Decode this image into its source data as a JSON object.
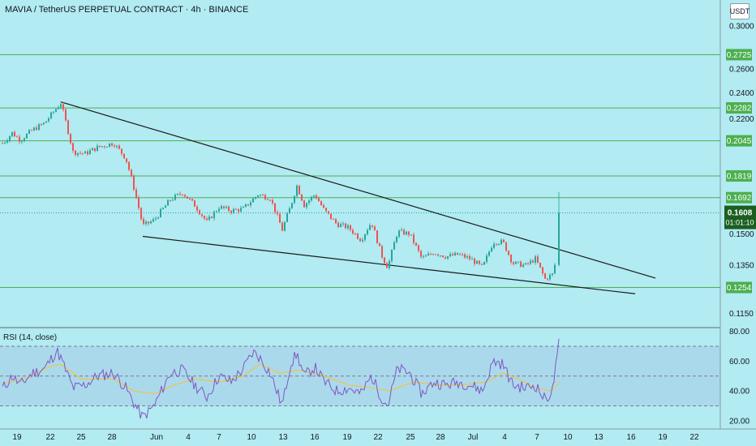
{
  "header": {
    "title": "MAVIA / TetherUS PERPETUAL CONTRACT · 4h · BINANCE",
    "currency": "USDT"
  },
  "rsi": {
    "title": "RSI (14, close)",
    "axis_ticks": [
      "80.00",
      "60.00",
      "40.00",
      "20.00"
    ]
  },
  "colors": {
    "background": "#b2ebf2",
    "bull": "#26a69a",
    "bear": "#ef5350",
    "level_line": "#4caf50",
    "level_label_bg": "#4caf50",
    "price_label_bg": "#1b5e20",
    "rsi_line": "#7e57c2",
    "rsi_ma": "#fbc02d"
  },
  "chart_data": [
    {
      "type": "candlestick",
      "title": "MAVIA / TetherUS PERPETUAL CONTRACT · 4h · BINANCE",
      "x_tick_labels": [
        "19",
        "22",
        "25",
        "28",
        "Jun",
        "4",
        "7",
        "10",
        "13",
        "16",
        "19",
        "22",
        "25",
        "28",
        "Jul",
        "4",
        "7",
        "10",
        "13",
        "16",
        "19",
        "22"
      ],
      "y_tick_labels": [
        "0.3000",
        "0.2600",
        "0.2400",
        "0.2200",
        "0.1500",
        "0.1350",
        "0.1150"
      ],
      "ylim": [
        0.11,
        0.32
      ],
      "horizontal_levels": [
        0.2725,
        0.2282,
        0.2045,
        0.1819,
        0.1692
      ],
      "support_level": 0.1254,
      "last_price": 0.1608,
      "countdown": "01:01:10",
      "trendlines": [
        {
          "name": "upper",
          "from": [
            75,
            0.2328
          ],
          "to": [
            808,
            0.1294
          ]
        },
        {
          "name": "lower",
          "from": [
            176,
            0.1487
          ],
          "to": [
            783,
            0.1228
          ]
        }
      ],
      "anchors": [
        [
          4,
          0.203
        ],
        [
          15,
          0.21
        ],
        [
          25,
          0.205
        ],
        [
          40,
          0.212
        ],
        [
          55,
          0.217
        ],
        [
          75,
          0.232
        ],
        [
          90,
          0.197
        ],
        [
          105,
          0.196
        ],
        [
          120,
          0.2
        ],
        [
          140,
          0.203
        ],
        [
          155,
          0.193
        ],
        [
          165,
          0.175
        ],
        [
          176,
          0.154
        ],
        [
          190,
          0.157
        ],
        [
          210,
          0.168
        ],
        [
          225,
          0.172
        ],
        [
          240,
          0.165
        ],
        [
          255,
          0.156
        ],
        [
          270,
          0.164
        ],
        [
          285,
          0.162
        ],
        [
          300,
          0.163
        ],
        [
          318,
          0.171
        ],
        [
          333,
          0.169
        ],
        [
          348,
          0.152
        ],
        [
          358,
          0.164
        ],
        [
          366,
          0.176
        ],
        [
          375,
          0.165
        ],
        [
          388,
          0.171
        ],
        [
          400,
          0.162
        ],
        [
          415,
          0.155
        ],
        [
          430,
          0.153
        ],
        [
          445,
          0.147
        ],
        [
          458,
          0.156
        ],
        [
          470,
          0.14
        ],
        [
          478,
          0.134
        ],
        [
          490,
          0.151
        ],
        [
          505,
          0.15
        ],
        [
          520,
          0.138
        ],
        [
          535,
          0.141
        ],
        [
          550,
          0.139
        ],
        [
          565,
          0.14
        ],
        [
          580,
          0.138
        ],
        [
          595,
          0.134
        ],
        [
          608,
          0.146
        ],
        [
          620,
          0.146
        ],
        [
          632,
          0.136
        ],
        [
          648,
          0.135
        ],
        [
          660,
          0.138
        ],
        [
          672,
          0.129
        ],
        [
          681,
          0.131
        ],
        [
          686,
          0.138
        ],
        [
          690,
          0.1608
        ]
      ]
    },
    {
      "type": "line",
      "title": "RSI (14, close)",
      "ylim": [
        15,
        82
      ],
      "y_tick_labels": [
        "80.00",
        "60.00",
        "40.00",
        "20.00"
      ],
      "levels": [
        70,
        50,
        30
      ],
      "series": [
        {
          "values": [
            [
              4,
              42
            ],
            [
              15,
              50
            ],
            [
              25,
              44
            ],
            [
              40,
              52
            ],
            [
              55,
              55
            ],
            [
              70,
              67
            ],
            [
              75,
              62
            ],
            [
              90,
              42
            ],
            [
              105,
              44
            ],
            [
              120,
              50
            ],
            [
              140,
              52
            ],
            [
              155,
              42
            ],
            [
              165,
              32
            ],
            [
              176,
              22
            ],
            [
              190,
              30
            ],
            [
              210,
              52
            ],
            [
              225,
              54
            ],
            [
              240,
              44
            ],
            [
              255,
              36
            ],
            [
              270,
              50
            ],
            [
              285,
              46
            ],
            [
              300,
              55
            ],
            [
              312,
              66
            ],
            [
              318,
              64
            ],
            [
              333,
              52
            ],
            [
              348,
              30
            ],
            [
              358,
              58
            ],
            [
              366,
              65
            ],
            [
              375,
              50
            ],
            [
              388,
              56
            ],
            [
              400,
              46
            ],
            [
              415,
              40
            ],
            [
              430,
              42
            ],
            [
              445,
              38
            ],
            [
              458,
              50
            ],
            [
              470,
              36
            ],
            [
              478,
              30
            ],
            [
              490,
              55
            ],
            [
              505,
              52
            ],
            [
              520,
              38
            ],
            [
              535,
              46
            ],
            [
              550,
              44
            ],
            [
              565,
              46
            ],
            [
              580,
              44
            ],
            [
              595,
              40
            ],
            [
              608,
              60
            ],
            [
              620,
              58
            ],
            [
              632,
              44
            ],
            [
              648,
              42
            ],
            [
              660,
              44
            ],
            [
              672,
              34
            ],
            [
              681,
              40
            ],
            [
              686,
              60
            ],
            [
              690,
              80
            ]
          ]
        },
        {
          "values": [
            [
              4,
              45
            ],
            [
              30,
              48
            ],
            [
              60,
              56
            ],
            [
              75,
              58
            ],
            [
              100,
              48
            ],
            [
              140,
              48
            ],
            [
              165,
              40
            ],
            [
              190,
              38
            ],
            [
              215,
              44
            ],
            [
              240,
              48
            ],
            [
              270,
              46
            ],
            [
              300,
              50
            ],
            [
              320,
              58
            ],
            [
              345,
              52
            ],
            [
              370,
              54
            ],
            [
              400,
              50
            ],
            [
              430,
              44
            ],
            [
              460,
              42
            ],
            [
              480,
              40
            ],
            [
              510,
              46
            ],
            [
              540,
              44
            ],
            [
              570,
              44
            ],
            [
              600,
              46
            ],
            [
              620,
              52
            ],
            [
              640,
              48
            ],
            [
              660,
              42
            ],
            [
              680,
              40
            ],
            [
              690,
              46
            ]
          ]
        }
      ]
    }
  ]
}
